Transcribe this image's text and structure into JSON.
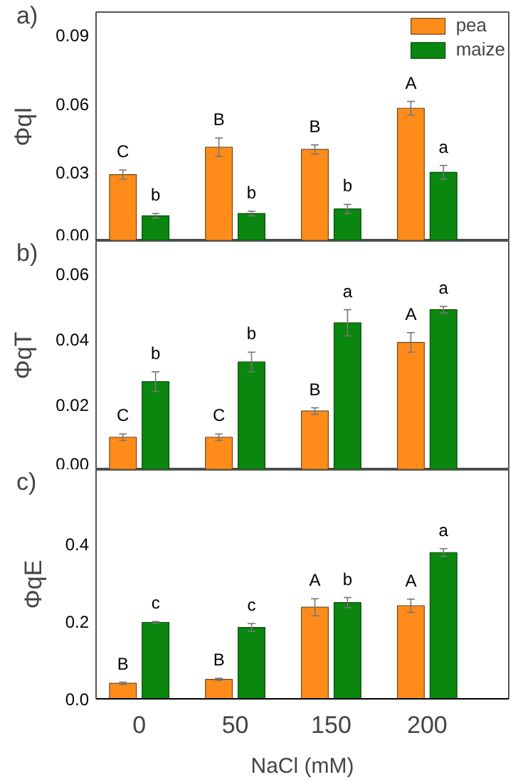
{
  "chart_data": [
    {
      "type": "bar",
      "title": "a)",
      "ylabel": "ΦqI",
      "categories": [
        "0",
        "50",
        "150",
        "200"
      ],
      "ylim": [
        0,
        0.1
      ],
      "yticks": [
        {
          "value": 0,
          "label": "0.00"
        },
        0.03,
        0.06,
        0.09
      ],
      "tick_labels": "y",
      "legend": "top right",
      "grid": false,
      "series": [
        {
          "name": "pea",
          "color": "#ff8c1a",
          "values": [
            0.029,
            0.041,
            0.04,
            0.058
          ],
          "errors": [
            0.002,
            0.004,
            0.002,
            0.003
          ],
          "value_labels": [
            "C",
            "B",
            "B",
            "A"
          ]
        },
        {
          "name": "maize",
          "color": "#0a870f",
          "values": [
            0.011,
            0.012,
            0.014,
            0.03
          ],
          "errors": [
            0.001,
            0.001,
            0.002,
            0.003
          ],
          "value_labels": [
            "b",
            "b",
            "b",
            "a"
          ]
        }
      ]
    },
    {
      "type": "bar",
      "title": "b)",
      "ylabel": "ΦqT",
      "categories": [
        "0",
        "50",
        "150",
        "200"
      ],
      "ylim": [
        0,
        0.07
      ],
      "yticks": [
        {
          "value": 0,
          "label": "0.00"
        },
        {
          "value": 0.02,
          "label": "0.02"
        },
        {
          "value": 0.04,
          "label": "0.04"
        },
        {
          "value": 0.06,
          "label": "0.06"
        }
      ],
      "tick_labels": "y",
      "grid": false,
      "series": [
        {
          "color": "#ff8c1a",
          "values": [
            0.01,
            0.01,
            0.018,
            0.039
          ],
          "errors": [
            0.001,
            0.001,
            0.001,
            0.003
          ],
          "value_labels": [
            "C",
            "C",
            "B",
            "A"
          ]
        },
        {
          "color": "#0a870f",
          "values": [
            0.027,
            0.033,
            0.045,
            0.049
          ],
          "errors": [
            0.003,
            0.003,
            0.004,
            0.001
          ],
          "value_labels": [
            "b",
            "b",
            "a",
            "a"
          ]
        }
      ]
    },
    {
      "type": "bar",
      "title": "c)",
      "ylabel": "ΦqE",
      "xlabel": "NaCl (mM)",
      "categories": [
        "0",
        "50",
        "150",
        "200"
      ],
      "ylim": [
        0,
        0.59
      ],
      "yticks": [
        {
          "value": 0,
          "label": "0.0"
        },
        0.2,
        0.4
      ],
      "grid": false,
      "series": [
        {
          "color": "#ff8c1a",
          "values": [
            0.04,
            0.05,
            0.236,
            0.24
          ],
          "errors": [
            0.003,
            0.003,
            0.022,
            0.017
          ],
          "value_labels": [
            "B",
            "B",
            "A",
            "A"
          ]
        },
        {
          "color": "#0a870f",
          "values": [
            0.197,
            0.184,
            0.248,
            0.377
          ],
          "errors": [
            0.002,
            0.01,
            0.013,
            0.01
          ],
          "value_labels": [
            "c",
            "c",
            "b",
            "a"
          ]
        }
      ]
    }
  ]
}
